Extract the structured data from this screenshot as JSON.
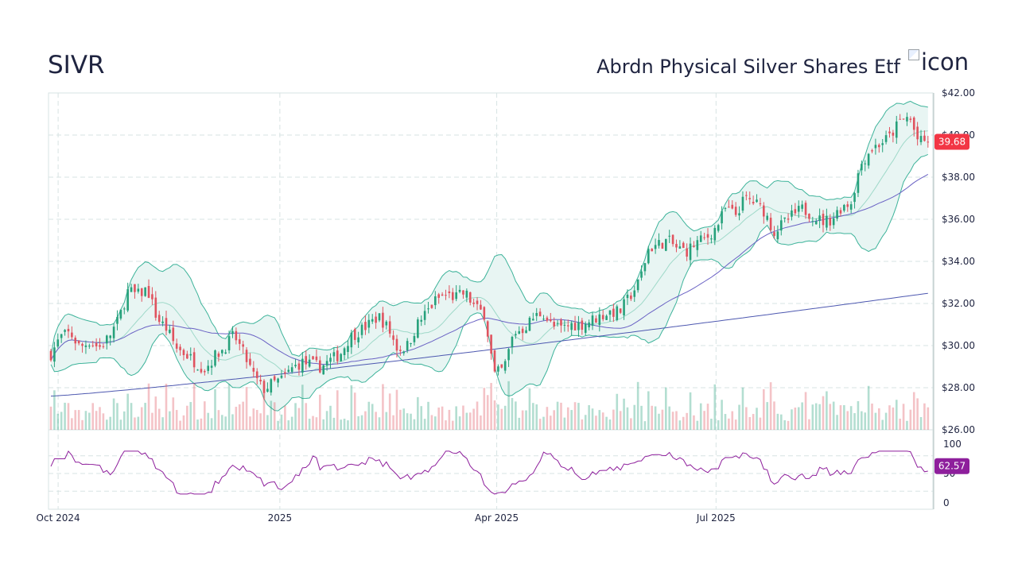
{
  "header": {
    "ticker": "SIVR",
    "company": "Abrdn Physical Silver Shares Etf",
    "logo_alt": "icon"
  },
  "colors": {
    "up": "#26a17b",
    "down": "#e0535f",
    "band_line": "#3db39a",
    "band_fill": "#e8f5f3",
    "sma_short": "#9fd9c9",
    "sma_mid": "#6a62c4",
    "sma_long": "#4d58b0",
    "rsi": "#8e1f9c",
    "price_badge": "#f23645",
    "rsi_badge": "#8e1f9c",
    "grid": "#d7e3e3",
    "axis_text": "#1f2440"
  },
  "chart_data": {
    "type": "candlestick",
    "price_axis": {
      "min": 26,
      "max": 42,
      "ticks": [
        "$26.00",
        "$28.00",
        "$30.00",
        "$32.00",
        "$34.00",
        "$36.00",
        "$38.00",
        "$40.00",
        "$42.00"
      ]
    },
    "x_axis_labels": [
      {
        "label": "Oct 2024",
        "day": 3
      },
      {
        "label": "2025",
        "day": 95
      },
      {
        "label": "Apr 2025",
        "day": 185
      },
      {
        "label": "Jul 2025",
        "day": 276
      }
    ],
    "date_range_days": 365,
    "last_price": "39.68",
    "close_anchors": [
      [
        0,
        29.6
      ],
      [
        4,
        30.4
      ],
      [
        8,
        30.6
      ],
      [
        12,
        29.9
      ],
      [
        16,
        30.2
      ],
      [
        20,
        29.9
      ],
      [
        24,
        30.4
      ],
      [
        28,
        31.2
      ],
      [
        32,
        32.6
      ],
      [
        36,
        32.4
      ],
      [
        40,
        32.7
      ],
      [
        44,
        31.3
      ],
      [
        48,
        30.8
      ],
      [
        52,
        29.9
      ],
      [
        56,
        29.6
      ],
      [
        60,
        29.2
      ],
      [
        64,
        28.9
      ],
      [
        68,
        29.5
      ],
      [
        72,
        29.9
      ],
      [
        76,
        30.5
      ],
      [
        80,
        29.6
      ],
      [
        84,
        28.6
      ],
      [
        88,
        27.9
      ],
      [
        92,
        28.2
      ],
      [
        96,
        28.4
      ],
      [
        100,
        28.9
      ],
      [
        104,
        29.2
      ],
      [
        108,
        29.1
      ],
      [
        112,
        29.0
      ],
      [
        116,
        29.3
      ],
      [
        120,
        29.6
      ],
      [
        124,
        30.4
      ],
      [
        128,
        30.7
      ],
      [
        132,
        31.0
      ],
      [
        136,
        31.4
      ],
      [
        140,
        30.8
      ],
      [
        144,
        29.8
      ],
      [
        148,
        30.0
      ],
      [
        152,
        31.0
      ],
      [
        156,
        31.6
      ],
      [
        160,
        32.2
      ],
      [
        164,
        32.4
      ],
      [
        168,
        32.3
      ],
      [
        172,
        32.5
      ],
      [
        176,
        31.8
      ],
      [
        180,
        31.5
      ],
      [
        184,
        28.6
      ],
      [
        188,
        28.9
      ],
      [
        192,
        30.6
      ],
      [
        196,
        30.8
      ],
      [
        200,
        31.3
      ],
      [
        204,
        31.6
      ],
      [
        208,
        30.9
      ],
      [
        212,
        30.8
      ],
      [
        216,
        31.0
      ],
      [
        220,
        31.0
      ],
      [
        224,
        31.2
      ],
      [
        228,
        31.4
      ],
      [
        232,
        31.6
      ],
      [
        236,
        31.6
      ],
      [
        240,
        32.3
      ],
      [
        244,
        33.0
      ],
      [
        248,
        34.6
      ],
      [
        252,
        34.8
      ],
      [
        256,
        35.0
      ],
      [
        260,
        34.6
      ],
      [
        264,
        34.5
      ],
      [
        268,
        34.9
      ],
      [
        272,
        35.1
      ],
      [
        276,
        35.6
      ],
      [
        280,
        36.5
      ],
      [
        284,
        36.2
      ],
      [
        288,
        37.0
      ],
      [
        292,
        36.8
      ],
      [
        296,
        36.4
      ],
      [
        300,
        35.4
      ],
      [
        304,
        35.8
      ],
      [
        308,
        36.2
      ],
      [
        312,
        36.5
      ],
      [
        316,
        36.2
      ],
      [
        320,
        35.9
      ],
      [
        324,
        36.0
      ],
      [
        328,
        36.6
      ],
      [
        332,
        36.8
      ],
      [
        336,
        38.6
      ],
      [
        340,
        39.3
      ],
      [
        344,
        39.6
      ],
      [
        348,
        39.9
      ],
      [
        352,
        40.6
      ],
      [
        356,
        40.9
      ],
      [
        360,
        39.68
      ]
    ],
    "volume_scale": "relative",
    "rsi": {
      "min": 0,
      "max": 100,
      "ticks": [
        "100",
        "50",
        "0"
      ],
      "last_value": "62.57"
    }
  }
}
